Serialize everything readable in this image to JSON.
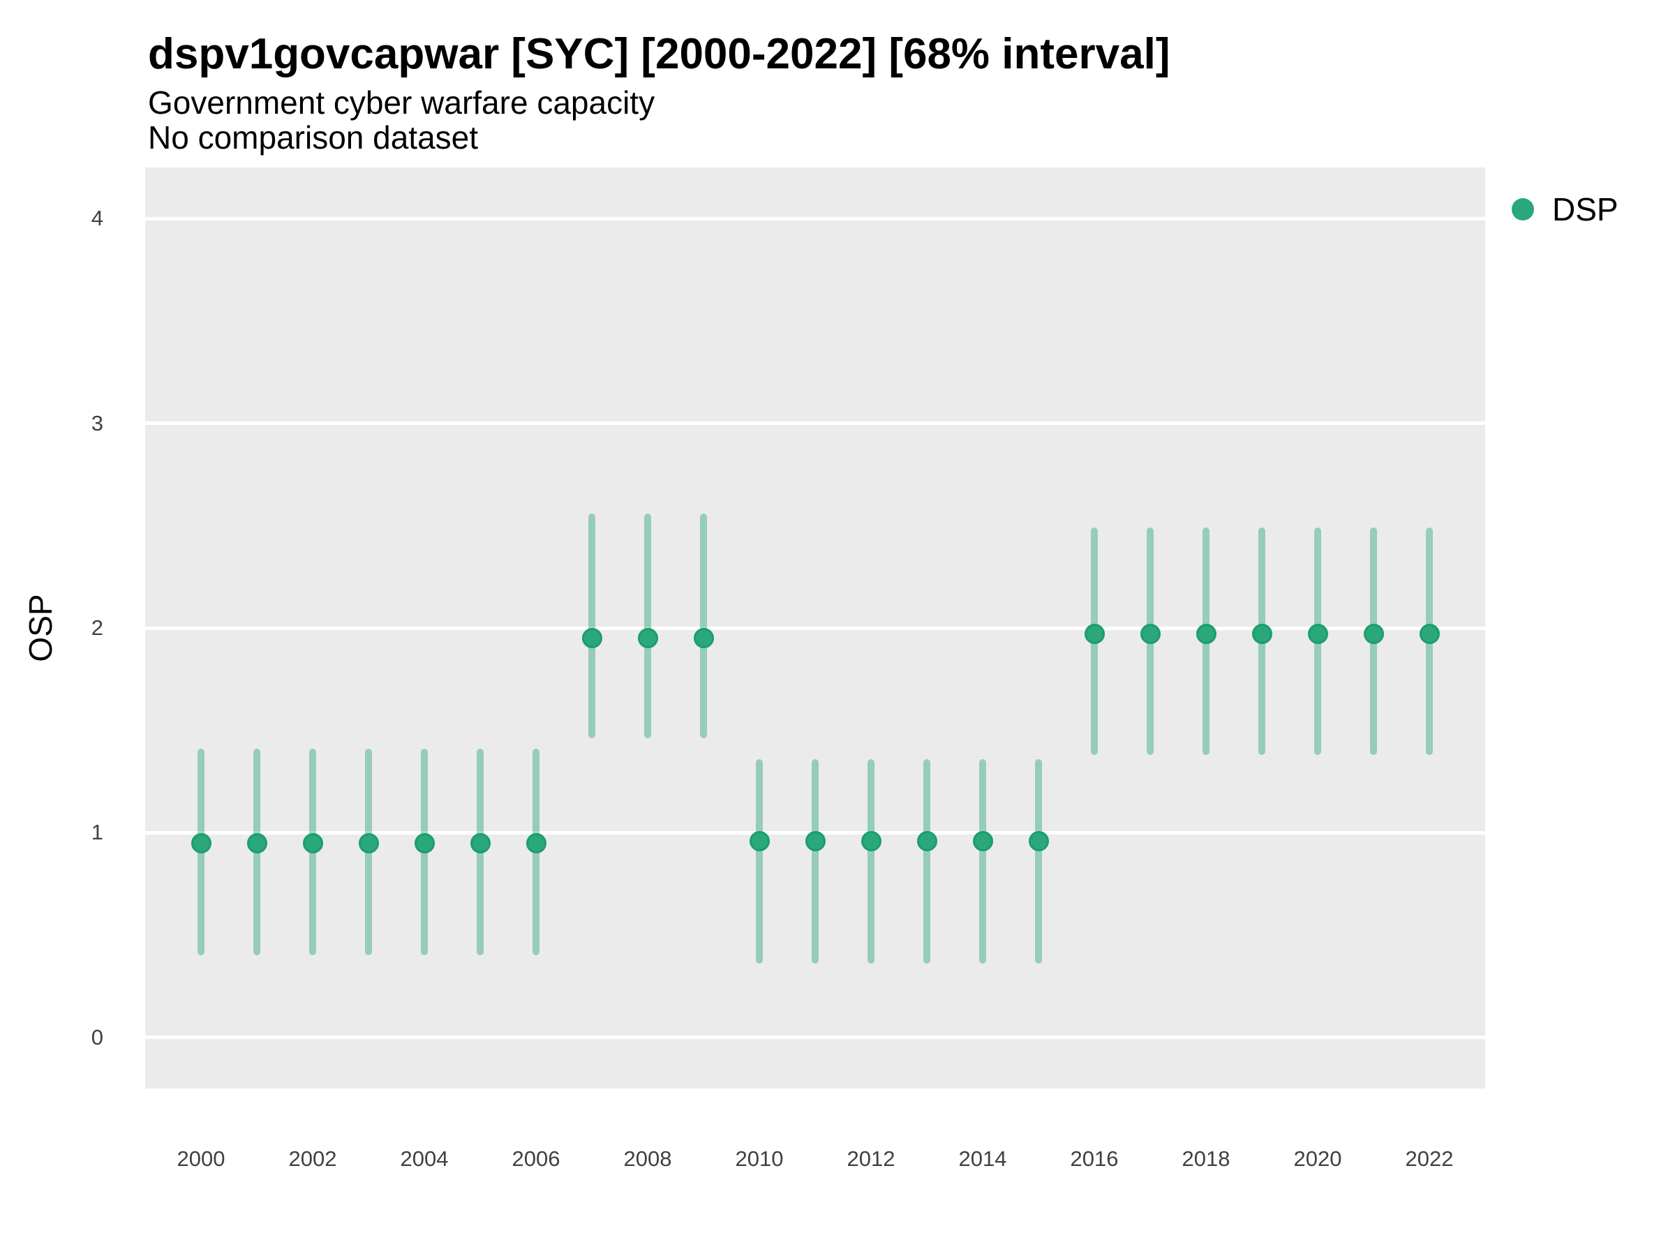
{
  "header": {
    "title": "dspv1govcapwar [SYC] [2000-2022] [68% interval]",
    "subtitle": "Government cyber warfare capacity",
    "note": "No comparison dataset"
  },
  "axes": {
    "y_title": "OSP",
    "y_tick_labels": [
      "0",
      "1",
      "2",
      "3",
      "4"
    ],
    "x_tick_labels": [
      "2000",
      "2002",
      "2004",
      "2006",
      "2008",
      "2010",
      "2012",
      "2014",
      "2016",
      "2018",
      "2020",
      "2022"
    ]
  },
  "legend": {
    "items": [
      {
        "label": "DSP",
        "color": "#2aa87b"
      }
    ]
  },
  "colors": {
    "panel_background": "#ebebeb",
    "gridline": "#ffffff",
    "point_fill": "#2aa87b",
    "point_stroke": "#1b9e6d",
    "interval_bar": "rgba(47,168,123,0.45)",
    "tick_text": "#404040",
    "title_text": "#000000"
  },
  "chart_data": {
    "type": "scatter",
    "title": "dspv1govcapwar [SYC] [2000-2022] [68% interval]",
    "subtitle": "Government cyber warfare capacity",
    "note": "No comparison dataset",
    "xlabel": "",
    "ylabel": "OSP",
    "interval": "68%",
    "legend_position": "top-right",
    "grid": "horizontal-only",
    "x_domain": [
      1999,
      2023
    ],
    "y_domain": [
      -0.25,
      4.25
    ],
    "x_ticks": [
      2000,
      2002,
      2004,
      2006,
      2008,
      2010,
      2012,
      2014,
      2016,
      2018,
      2020,
      2022
    ],
    "y_ticks": [
      0,
      1,
      2,
      3,
      4
    ],
    "series": [
      {
        "name": "DSP",
        "color": "#2aa87b",
        "interval_color": "rgba(47,168,123,0.45)",
        "points": [
          {
            "year": 2000,
            "est": 0.95,
            "lo": 0.4,
            "hi": 1.41
          },
          {
            "year": 2001,
            "est": 0.95,
            "lo": 0.4,
            "hi": 1.41
          },
          {
            "year": 2002,
            "est": 0.95,
            "lo": 0.4,
            "hi": 1.41
          },
          {
            "year": 2003,
            "est": 0.95,
            "lo": 0.4,
            "hi": 1.41
          },
          {
            "year": 2004,
            "est": 0.95,
            "lo": 0.4,
            "hi": 1.41
          },
          {
            "year": 2005,
            "est": 0.95,
            "lo": 0.4,
            "hi": 1.41
          },
          {
            "year": 2006,
            "est": 0.95,
            "lo": 0.4,
            "hi": 1.41
          },
          {
            "year": 2007,
            "est": 1.95,
            "lo": 1.46,
            "hi": 2.56
          },
          {
            "year": 2008,
            "est": 1.95,
            "lo": 1.46,
            "hi": 2.56
          },
          {
            "year": 2009,
            "est": 1.95,
            "lo": 1.46,
            "hi": 2.56
          },
          {
            "year": 2010,
            "est": 0.96,
            "lo": 0.36,
            "hi": 1.36
          },
          {
            "year": 2011,
            "est": 0.96,
            "lo": 0.36,
            "hi": 1.36
          },
          {
            "year": 2012,
            "est": 0.96,
            "lo": 0.36,
            "hi": 1.36
          },
          {
            "year": 2013,
            "est": 0.96,
            "lo": 0.36,
            "hi": 1.36
          },
          {
            "year": 2014,
            "est": 0.96,
            "lo": 0.36,
            "hi": 1.36
          },
          {
            "year": 2015,
            "est": 0.96,
            "lo": 0.36,
            "hi": 1.36
          },
          {
            "year": 2016,
            "est": 1.97,
            "lo": 1.38,
            "hi": 2.49
          },
          {
            "year": 2017,
            "est": 1.97,
            "lo": 1.38,
            "hi": 2.49
          },
          {
            "year": 2018,
            "est": 1.97,
            "lo": 1.38,
            "hi": 2.49
          },
          {
            "year": 2019,
            "est": 1.97,
            "lo": 1.38,
            "hi": 2.49
          },
          {
            "year": 2020,
            "est": 1.97,
            "lo": 1.38,
            "hi": 2.49
          },
          {
            "year": 2021,
            "est": 1.97,
            "lo": 1.38,
            "hi": 2.49
          },
          {
            "year": 2022,
            "est": 1.97,
            "lo": 1.38,
            "hi": 2.49
          }
        ]
      }
    ]
  }
}
